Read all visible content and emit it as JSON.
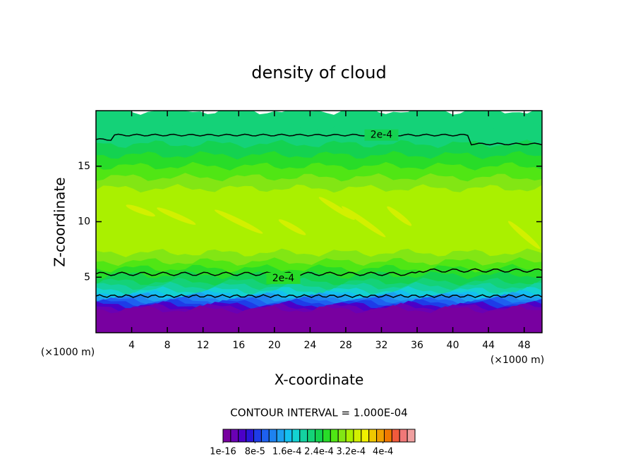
{
  "chart_data": {
    "type": "contour",
    "title": "density of cloud",
    "x_label": "X-coordinate",
    "y_label": "Z-coordinate",
    "x_unit": "(×1000 m)",
    "y_unit": "(×1000 m)",
    "xlim": [
      0,
      50
    ],
    "xticks": [
      4,
      8,
      12,
      16,
      20,
      24,
      28,
      32,
      36,
      40,
      44,
      48
    ],
    "ylim": [
      0,
      20
    ],
    "yticks": [
      5,
      10,
      15
    ],
    "contour_labels": [
      "2e-4",
      "2e-4"
    ],
    "contour_interval_label": "CONTOUR INTERVAL = 1.000E-04",
    "colorbar": {
      "clim": [
        0,
        0.00048
      ],
      "colors": [
        "#7800a0",
        "#6a00b4",
        "#4b00c8",
        "#2a14d8",
        "#1e3ce8",
        "#1e60f0",
        "#1e82f0",
        "#1ea0f0",
        "#14c0f0",
        "#14d2d2",
        "#14d2a0",
        "#14d278",
        "#14d250",
        "#28dc28",
        "#50e614",
        "#82e614",
        "#aaf000",
        "#d2f000",
        "#f0f000",
        "#f0c800",
        "#f0a000",
        "#f07800",
        "#f05a3c",
        "#f07878",
        "#f0a0a0"
      ],
      "ticks": [
        {
          "value": 1e-16,
          "label": "1e-16"
        },
        {
          "value": 8e-05,
          "label": "8e-5"
        },
        {
          "value": 0.00016,
          "label": "1.6e-4"
        },
        {
          "value": 0.00024,
          "label": "2.4e-4"
        },
        {
          "value": 0.00032,
          "label": "3.2e-4"
        },
        {
          "value": 0.0004,
          "label": "4e-4"
        }
      ]
    }
  }
}
